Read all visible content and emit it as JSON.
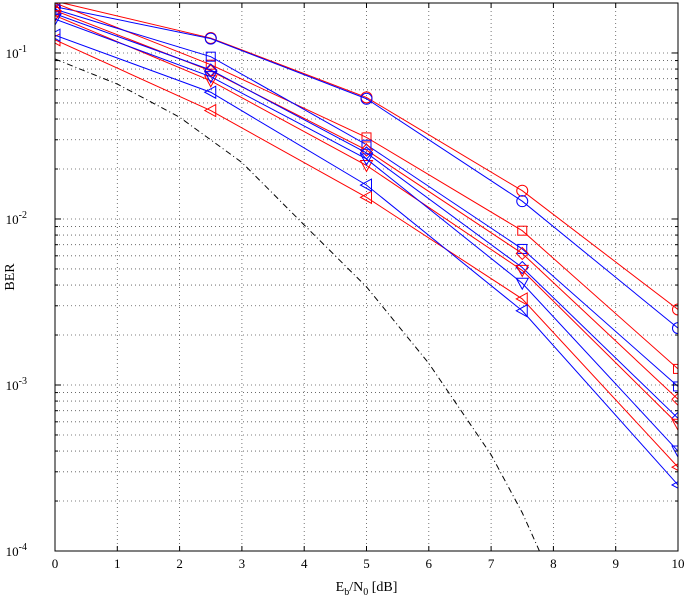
{
  "chart_data": {
    "type": "line",
    "title": "",
    "xlabel": "E_b/N_0 [dB]",
    "xlabel_parts": {
      "main": "E",
      "sub1": "b",
      "sep": "/N",
      "sub2": "0",
      "unit": " [dB]"
    },
    "ylabel": "BER",
    "xlim": [
      0,
      10
    ],
    "ylim": [
      0.0001,
      0.2
    ],
    "yscale": "log",
    "grid": true,
    "x_ticks": [
      "0",
      "1",
      "2",
      "3",
      "4",
      "5",
      "6",
      "7",
      "8",
      "9",
      "10"
    ],
    "y_ticks": [
      {
        "base": "10",
        "exp": "-1",
        "value": 0.1
      },
      {
        "base": "10",
        "exp": "-2",
        "value": 0.01
      },
      {
        "base": "10",
        "exp": "-3",
        "value": 0.001
      },
      {
        "base": "10",
        "exp": "-4",
        "value": 0.0001
      }
    ],
    "x": [
      0,
      2.5,
      5,
      7.5,
      10
    ],
    "series": [
      {
        "color": "#ff0000",
        "marker": "circle",
        "values": [
          0.205,
          0.123,
          0.054,
          0.0148,
          0.00285
        ]
      },
      {
        "color": "#0000ff",
        "marker": "circle",
        "values": [
          0.19,
          0.122,
          0.053,
          0.0128,
          0.0022
        ]
      },
      {
        "color": "#ff0000",
        "marker": "square",
        "values": [
          0.2,
          0.085,
          0.031,
          0.0085,
          0.00125
        ]
      },
      {
        "color": "#0000ff",
        "marker": "square",
        "values": [
          0.183,
          0.095,
          0.028,
          0.0066,
          0.00098
        ]
      },
      {
        "color": "#ff0000",
        "marker": "diamond",
        "values": [
          0.18,
          0.078,
          0.026,
          0.0062,
          0.00082
        ]
      },
      {
        "color": "#0000ff",
        "marker": "diamond",
        "values": [
          0.172,
          0.079,
          0.025,
          0.0051,
          0.00063
        ]
      },
      {
        "color": "#ff0000",
        "marker": "tri-down",
        "values": [
          0.168,
          0.068,
          0.021,
          0.0049,
          0.00058
        ]
      },
      {
        "color": "#0000ff",
        "marker": "tri-down",
        "values": [
          0.16,
          0.072,
          0.023,
          0.0041,
          0.0004
        ]
      },
      {
        "color": "#ff0000",
        "marker": "tri-left",
        "values": [
          0.12,
          0.045,
          0.0135,
          0.0033,
          0.00032
        ]
      },
      {
        "color": "#0000ff",
        "marker": "tri-left",
        "values": [
          0.128,
          0.058,
          0.016,
          0.0028,
          0.00025
        ]
      },
      {
        "color": "#000000",
        "marker": "none",
        "dash": "dashdot",
        "x": [
          0,
          1,
          2,
          3,
          4,
          5,
          6,
          7,
          7.5,
          8
        ],
        "values": [
          0.092,
          0.065,
          0.041,
          0.0219,
          0.0092,
          0.0039,
          0.00135,
          0.00038,
          0.00017,
          6.5e-05
        ]
      }
    ]
  }
}
